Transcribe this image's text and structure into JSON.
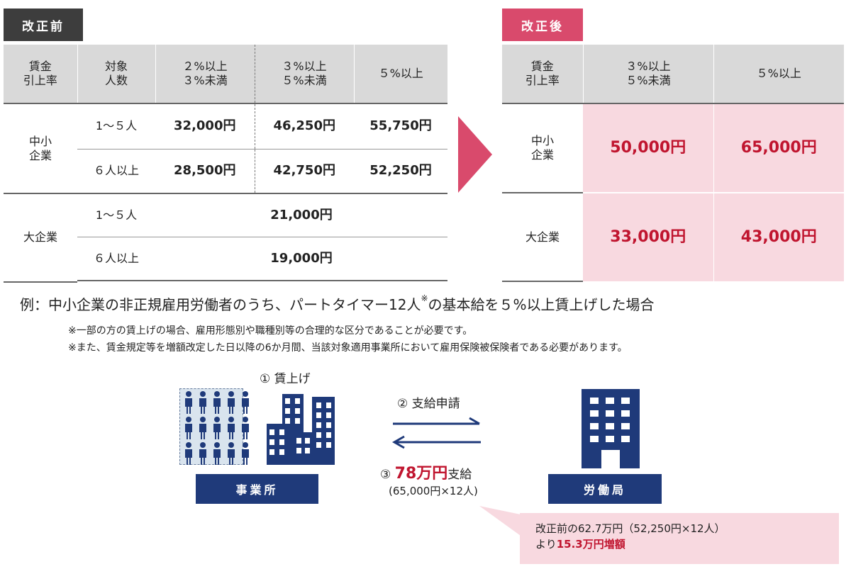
{
  "before": {
    "tag": "改正前",
    "header": {
      "c1_line1": "賃金",
      "c1_line2": "引上率",
      "c2_line1": "対象",
      "c2_line2": "人数",
      "c3_line1": "２%以上",
      "c3_line2": "３%未満",
      "c4_line1": "３%以上",
      "c4_line2": "５%未満",
      "c5": "５%以上"
    },
    "sme_label_line1": "中小",
    "sme_label_line2": "企業",
    "large_label": "大企業",
    "rows": [
      {
        "count": "1～５人",
        "v1": "32,000円",
        "v2": "46,250円",
        "v3": "55,750円"
      },
      {
        "count": "６人以上",
        "v1": "28,500円",
        "v2": "42,750円",
        "v3": "52,250円"
      }
    ],
    "large_rows": [
      {
        "count": "1～５人",
        "value": "21,000円"
      },
      {
        "count": "６人以上",
        "value": "19,000円"
      }
    ]
  },
  "after": {
    "tag": "改正後",
    "header": {
      "c1_line1": "賃金",
      "c1_line2": "引上率",
      "c2_line1": "３%以上",
      "c2_line2": "５%未満",
      "c3": "５%以上"
    },
    "sme_label_line1": "中小",
    "sme_label_line2": "企業",
    "large_label": "大企業",
    "sme": {
      "v1": "50,000円",
      "v2": "65,000円"
    },
    "large": {
      "v1": "33,000円",
      "v2": "43,000円"
    }
  },
  "example": {
    "text": "例：中小企業の非正規雇用労働者のうち、パートタイマー12人",
    "mark": "※",
    "text_end": "の基本給を５%以上賃上げした場合",
    "note1": "※一部の方の賃上げの場合、雇用形態別や職種別等の合理的な区分であることが必要です。",
    "note2": "※また、賃金規定等を増額改定した日以降の6か月間、当該対象適用事業所において雇用保険被保険者である必要があります。"
  },
  "flow": {
    "step1": "① 賃上げ",
    "step2": "② 支給申請",
    "step3_prefix": "③",
    "step3_amount": "78万円",
    "step3_suffix": "支給",
    "step3_calc": "(65,000円×12人)",
    "office_label": "事業所",
    "bureau_label": "労働局",
    "callout_line1": "改正前の62.7万円（52,250円×12人）",
    "callout_line2_prefix": "より",
    "callout_line2_amount": "15.3万円増額"
  },
  "colors": {
    "before_tag": "#3d3d3d",
    "after_tag": "#d94a6c",
    "highlight_bg": "#f8d9e0",
    "highlight_text": "#c0152f",
    "navy": "#1f3a7a"
  }
}
